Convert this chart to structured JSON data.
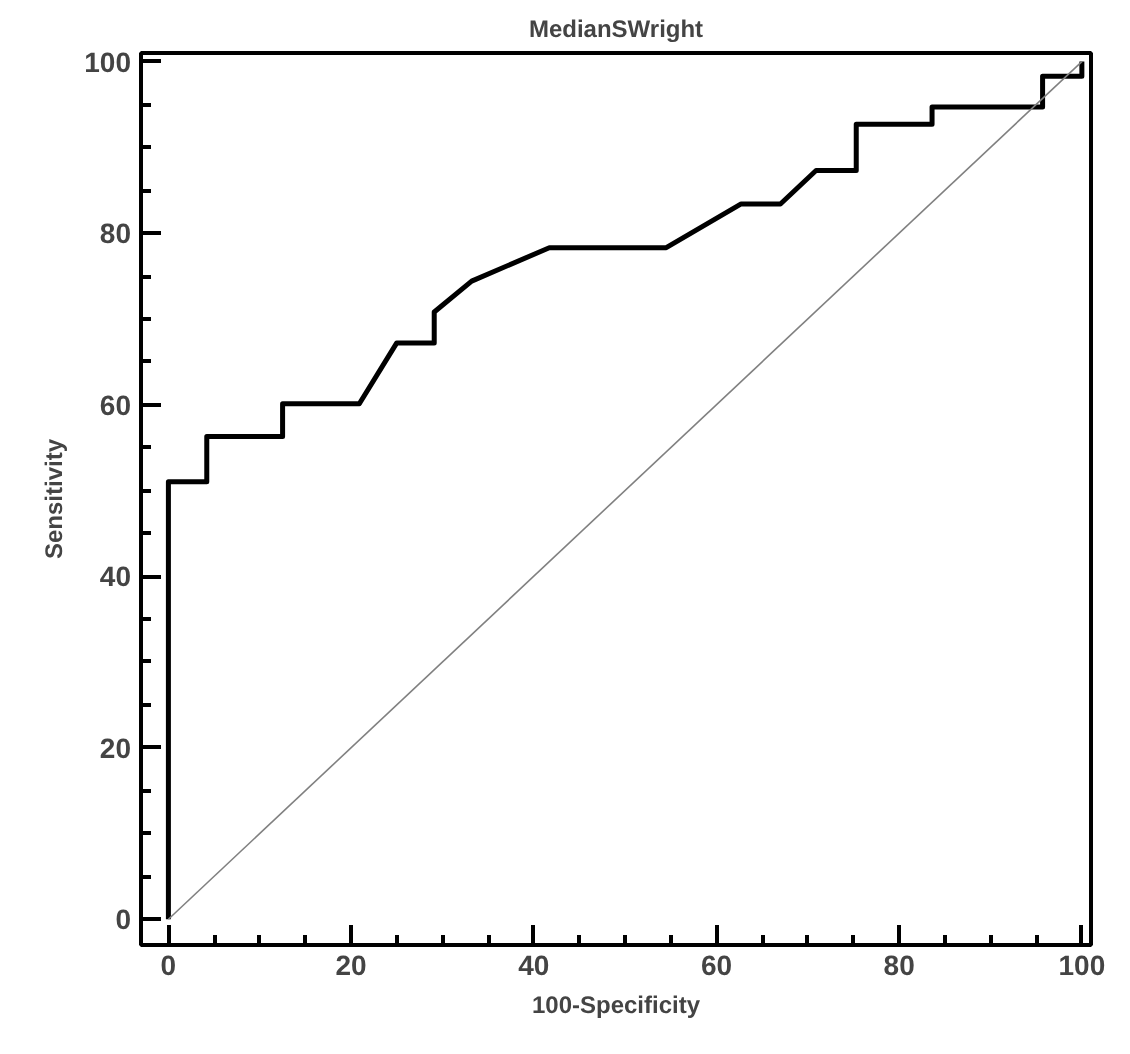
{
  "chart_data": {
    "type": "line",
    "title": "MedianSWright",
    "xlabel": "100-Specificity",
    "ylabel": "Sensitivity",
    "xlim": [
      -3,
      101
    ],
    "ylim": [
      -3,
      101
    ],
    "xticks": [
      0,
      20,
      40,
      60,
      80,
      100
    ],
    "yticks": [
      0,
      20,
      40,
      60,
      80,
      100
    ],
    "grid": false,
    "marker": "none",
    "line_style": "solid",
    "series": [
      {
        "color": "#000000",
        "x": [
          0,
          0,
          4.2,
          4.2,
          12.5,
          12.5,
          20.9,
          25,
          29.1,
          29.1,
          33.2,
          41.7,
          54.5,
          62.7,
          67,
          70.9,
          70.9,
          75.3,
          75.3,
          83.6,
          83.6,
          95.7,
          95.7,
          100,
          100
        ],
        "values": [
          0,
          51,
          51,
          56.3,
          56.3,
          60.1,
          60.1,
          67.2,
          67.2,
          70.8,
          74.4,
          78.3,
          78.3,
          83.4,
          83.4,
          87.3,
          87.3,
          87.3,
          92.7,
          92.7,
          94.7,
          94.7,
          98.3,
          98.3,
          100
        ]
      },
      {
        "color": "#808080",
        "x": [
          0,
          100
        ],
        "values": [
          0,
          100
        ]
      }
    ]
  }
}
